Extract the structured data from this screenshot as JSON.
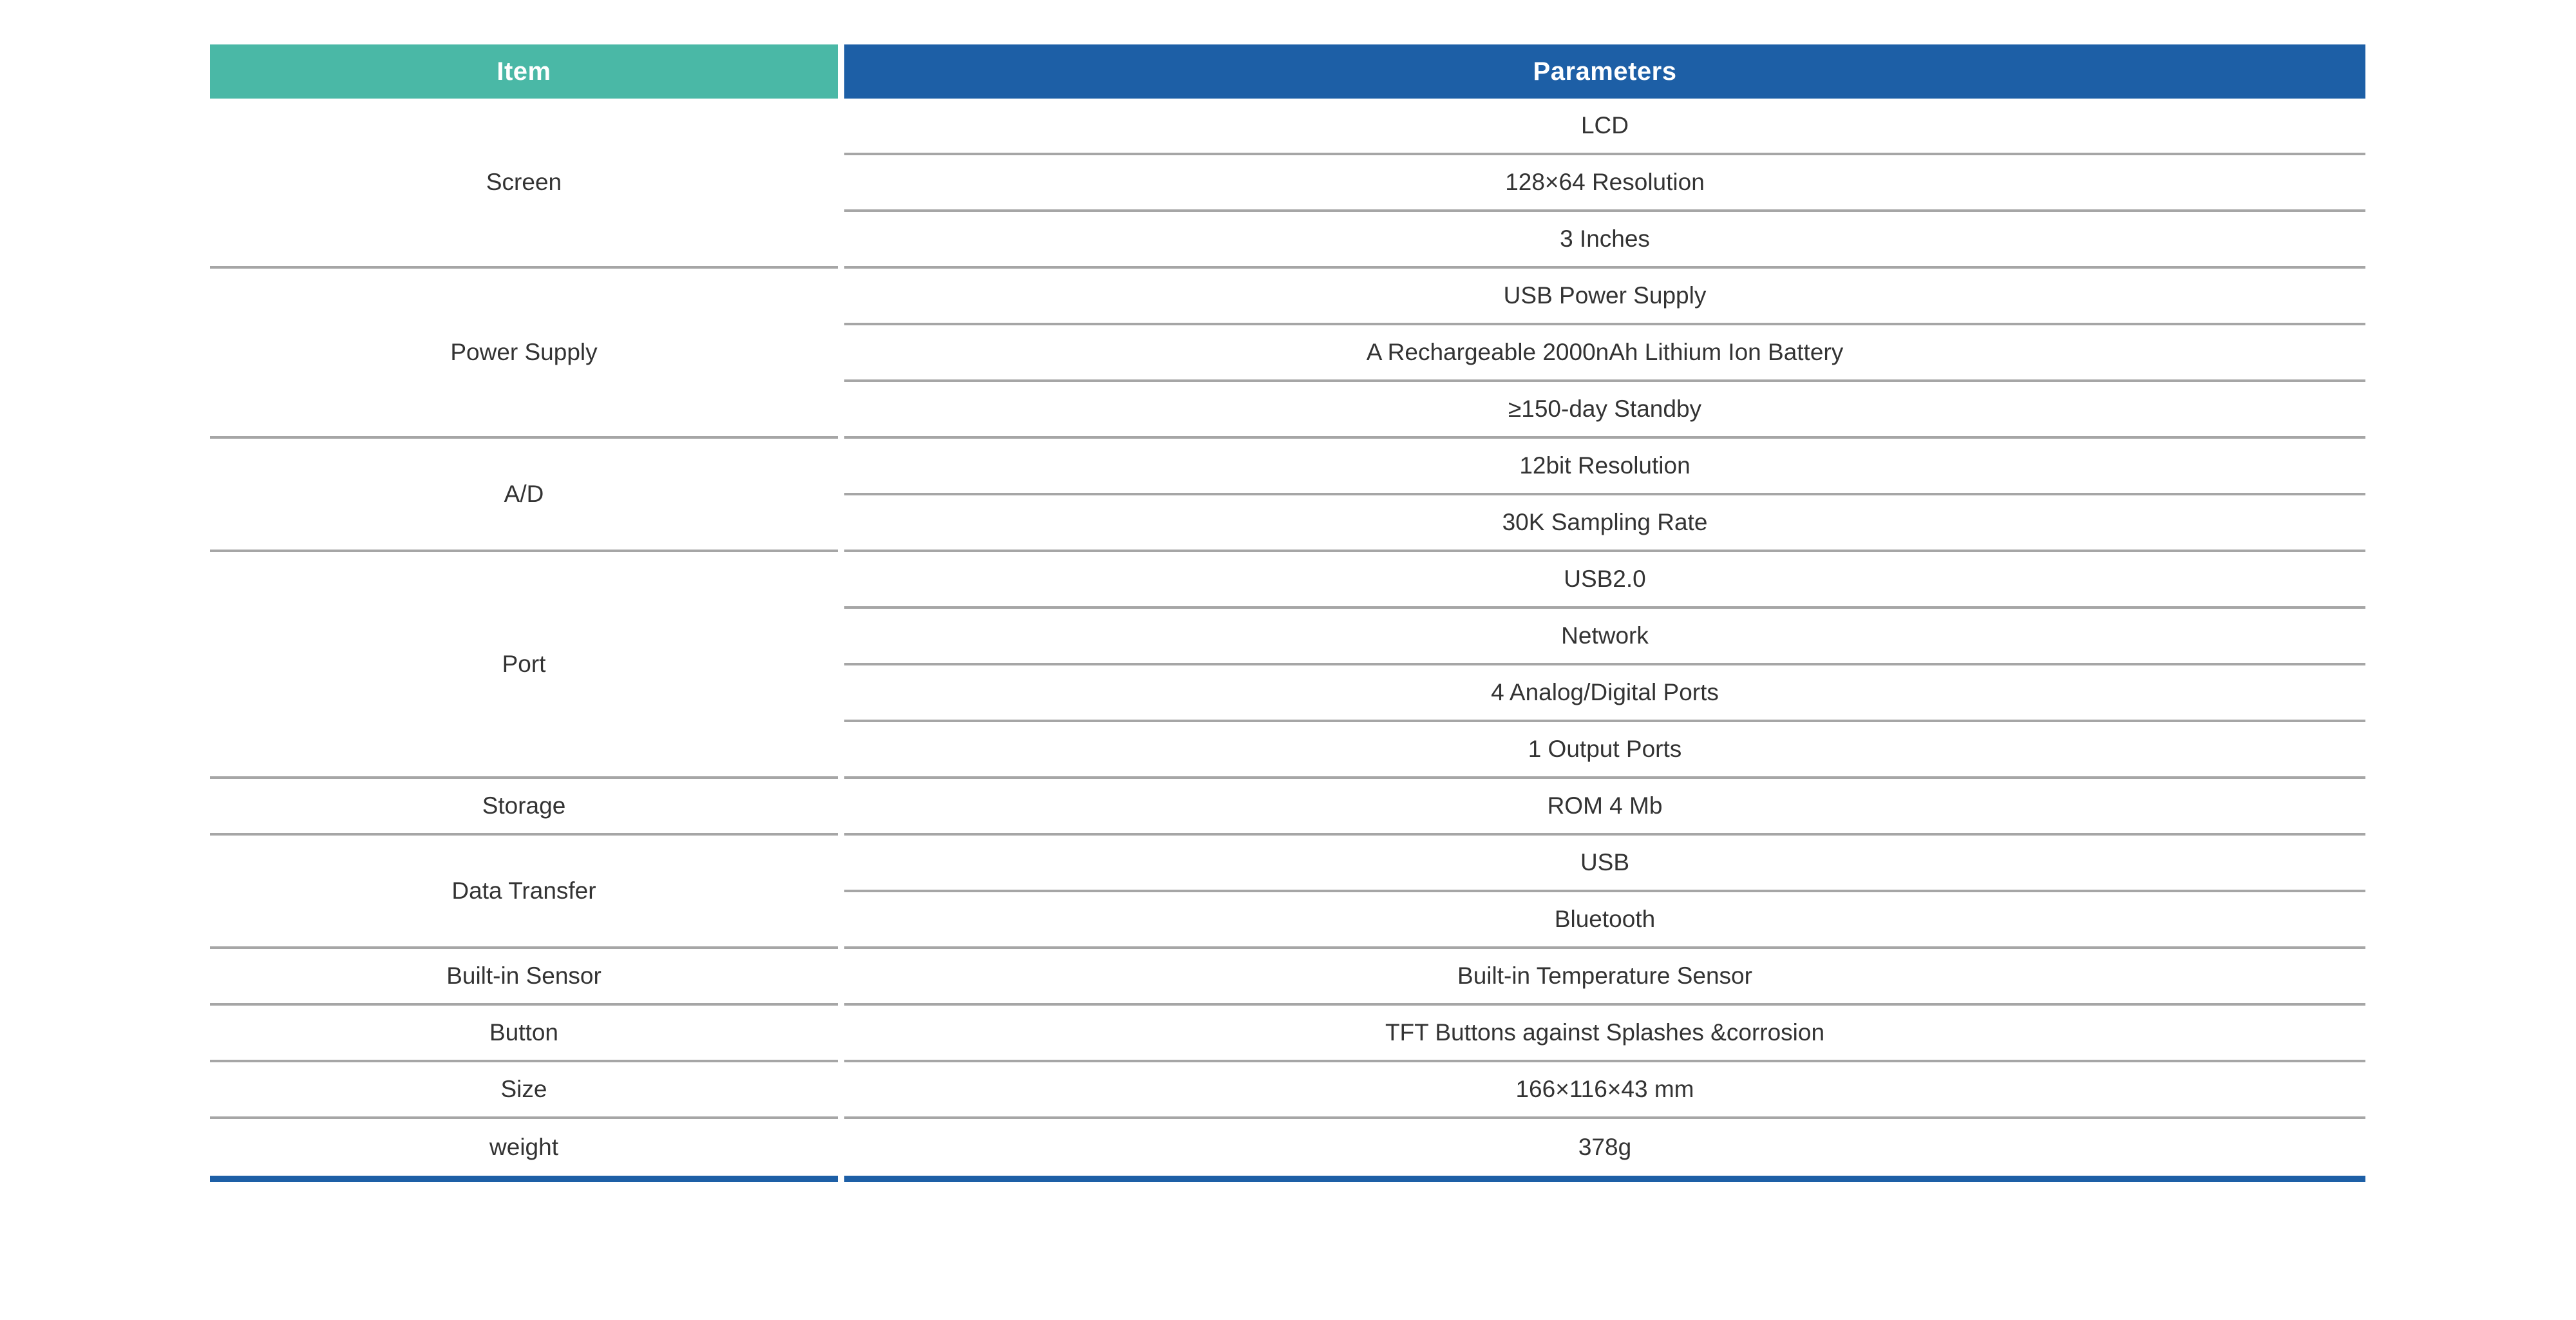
{
  "table": {
    "headers": [
      {
        "label": "Item"
      },
      {
        "label": "Parameters"
      }
    ],
    "groups": [
      {
        "item": "Screen",
        "parameters": [
          "LCD",
          "128×64 Resolution",
          "3 Inches"
        ]
      },
      {
        "item": "Power Supply",
        "parameters": [
          "USB Power Supply",
          "A Rechargeable 2000nAh Lithium Ion Battery",
          "≥150-day Standby"
        ]
      },
      {
        "item": "A/D",
        "parameters": [
          "12bit Resolution",
          "30K Sampling Rate"
        ]
      },
      {
        "item": "Port",
        "parameters": [
          "USB2.0",
          "Network",
          "4 Analog/Digital Ports",
          "1 Output Ports"
        ]
      },
      {
        "item": "Storage",
        "parameters": [
          "ROM 4 Mb"
        ]
      },
      {
        "item": "Data Transfer",
        "parameters": [
          "USB",
          "Bluetooth"
        ]
      },
      {
        "item": "Built-in Sensor",
        "parameters": [
          "Built-in Temperature Sensor"
        ]
      },
      {
        "item": "Button",
        "parameters": [
          "TFT Buttons against Splashes &corrosion"
        ]
      },
      {
        "item": "Size",
        "parameters": [
          "166×116×43 mm"
        ]
      },
      {
        "item": "weight",
        "parameters": [
          "378g"
        ]
      }
    ],
    "colors": {
      "item_header_bg": "#4AB8A6",
      "parameters_header_bg": "#1D5FA6",
      "header_text": "#FFFFFF",
      "row_divider": "#A6A6A6",
      "bottom_rule": "#1D5FA6",
      "cell_text": "#333333"
    }
  }
}
